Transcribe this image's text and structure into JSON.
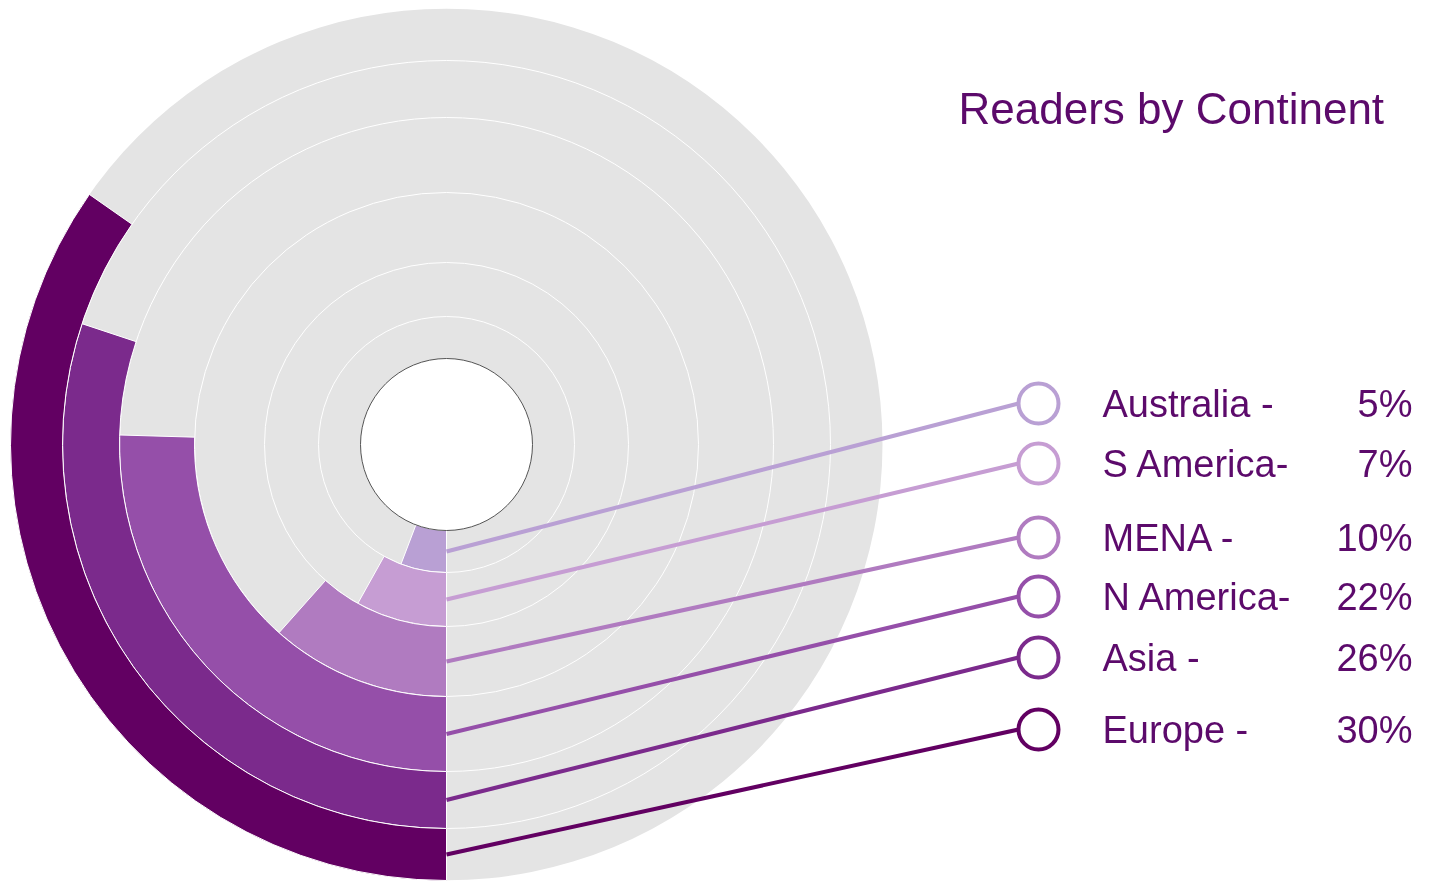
{
  "chart_data": {
    "type": "other",
    "title": "Readers by Continent",
    "categories": [
      "Australia  -",
      "S America-",
      "MENA      -",
      "N America-",
      "Asia         -",
      "Europe     -"
    ],
    "values": [
      5,
      7,
      10,
      22,
      26,
      30
    ],
    "value_labels": [
      "5%",
      "7%",
      "10%",
      "22%",
      "26%",
      "30%"
    ],
    "colors": [
      "#b9a0d4",
      "#c69dd3",
      "#b07bc0",
      "#954fa9",
      "#7b2a8c",
      "#620062"
    ]
  }
}
